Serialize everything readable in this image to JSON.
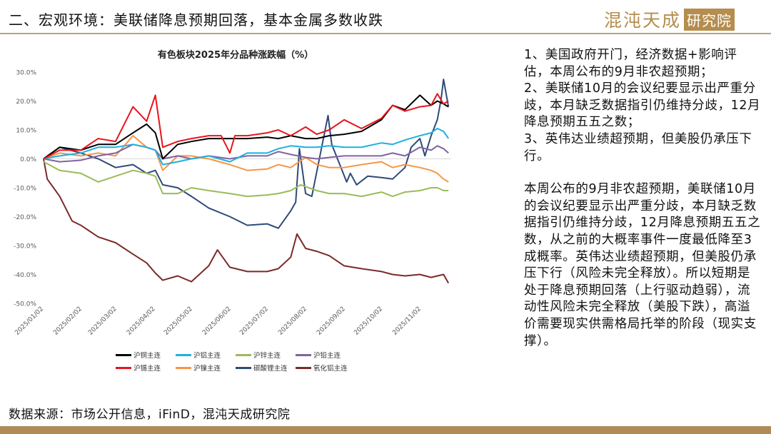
{
  "header": {
    "title": "二、宏观环境：美联储降息预期回落，基本金属多数收跌",
    "logo_text": "混沌天成",
    "logo_box_text": "研究院"
  },
  "notes": {
    "points": [
      "1、美国政府开门，经济数据+影响评估，本周公布的9月非农超预期；",
      "2、美联储10月的会议纪要显示出严重分歧，本月缺乏数据指引仍维持分歧，12月降息预期五五之数；",
      "3、英伟达业绩超预期，但美股仍承压下行。"
    ],
    "paragraph": "本周公布的9月非农超预期，美联储10月的会议纪要显示出严重分歧，本月缺乏数据指引仍维持分歧，12月降息预期五五之数，从之前的大概率事件一度最低降至3成概率。英伟达业绩超预期，但美股仍承压下行（风险未完全释放）。所以短期是处于降息预期回落（上行驱动趋弱），流动性风险未完全释放（美股下跌），高溢价需要现实供需格局托举的阶段（现实支撑）。"
  },
  "footer": {
    "source": "数据来源：市场公开信息，iFinD，混沌天成研究院",
    "bar_color": "#b08b55"
  },
  "chart_data": {
    "type": "line",
    "title": "有色板块2025年分品种涨跌幅（%）",
    "xlabel": "",
    "ylabel": "",
    "ylim": [
      -50,
      30
    ],
    "yticks": [
      "30.0%",
      "20.0%",
      "10.0%",
      "0.0%",
      "-10.0%",
      "-20.0%",
      "-30.0%",
      "-40.0%",
      "-50.0%"
    ],
    "ytick_values": [
      30,
      20,
      10,
      0,
      -10,
      -20,
      -30,
      -40,
      -50
    ],
    "xticks": [
      "2025/01/02",
      "2025/02/02",
      "2025/03/02",
      "2025/04/02",
      "2025/05/02",
      "2025/06/02",
      "2025/07/02",
      "2025/08/02",
      "2025/09/02",
      "2025/10/02",
      "2025/11/02"
    ],
    "grid": false,
    "legend_position": "bottom",
    "series": [
      {
        "name": "沪铜主连",
        "color": "#000000",
        "data": [
          [
            "2025-01-02",
            0
          ],
          [
            "2025-01-15",
            4
          ],
          [
            "2025-02-01",
            3
          ],
          [
            "2025-02-15",
            5
          ],
          [
            "2025-03-01",
            5
          ],
          [
            "2025-03-15",
            9
          ],
          [
            "2025-03-26",
            12
          ],
          [
            "2025-04-02",
            9
          ],
          [
            "2025-04-08",
            0
          ],
          [
            "2025-04-20",
            5
          ],
          [
            "2025-05-01",
            6
          ],
          [
            "2025-05-15",
            7
          ],
          [
            "2025-06-01",
            7
          ],
          [
            "2025-06-15",
            7
          ],
          [
            "2025-07-01",
            7.5
          ],
          [
            "2025-07-10",
            7
          ],
          [
            "2025-07-20",
            8
          ],
          [
            "2025-08-01",
            7
          ],
          [
            "2025-08-10",
            7
          ],
          [
            "2025-08-20",
            8
          ],
          [
            "2025-09-01",
            8.5
          ],
          [
            "2025-09-15",
            9.5
          ],
          [
            "2025-10-01",
            13.5
          ],
          [
            "2025-10-10",
            18.5
          ],
          [
            "2025-10-20",
            17
          ],
          [
            "2025-11-01",
            22
          ],
          [
            "2025-11-10",
            18.5
          ],
          [
            "2025-11-15",
            20
          ],
          [
            "2025-11-20",
            19
          ],
          [
            "2025-11-24",
            18
          ]
        ]
      },
      {
        "name": "沪铝主连",
        "color": "#1fb0e0",
        "data": [
          [
            "2025-01-02",
            0
          ],
          [
            "2025-01-15",
            1
          ],
          [
            "2025-02-01",
            2
          ],
          [
            "2025-02-15",
            4
          ],
          [
            "2025-03-01",
            4
          ],
          [
            "2025-03-15",
            5
          ],
          [
            "2025-03-26",
            4
          ],
          [
            "2025-04-02",
            3
          ],
          [
            "2025-04-08",
            -2
          ],
          [
            "2025-04-20",
            -1
          ],
          [
            "2025-05-01",
            0
          ],
          [
            "2025-05-15",
            1
          ],
          [
            "2025-06-01",
            -1
          ],
          [
            "2025-06-15",
            2
          ],
          [
            "2025-07-01",
            2
          ],
          [
            "2025-07-10",
            3.5
          ],
          [
            "2025-07-20",
            4.5
          ],
          [
            "2025-08-01",
            4
          ],
          [
            "2025-08-10",
            4
          ],
          [
            "2025-08-20",
            4.5
          ],
          [
            "2025-09-01",
            4
          ],
          [
            "2025-09-15",
            4
          ],
          [
            "2025-10-01",
            5.5
          ],
          [
            "2025-10-10",
            5
          ],
          [
            "2025-10-20",
            6.5
          ],
          [
            "2025-11-01",
            8
          ],
          [
            "2025-11-10",
            9
          ],
          [
            "2025-11-15",
            10.5
          ],
          [
            "2025-11-20",
            9.5
          ],
          [
            "2025-11-24",
            7
          ]
        ]
      },
      {
        "name": "沪锌主连",
        "color": "#9bbb59",
        "data": [
          [
            "2025-01-02",
            -1
          ],
          [
            "2025-01-15",
            -4
          ],
          [
            "2025-02-01",
            -5
          ],
          [
            "2025-02-15",
            -8
          ],
          [
            "2025-03-01",
            -6
          ],
          [
            "2025-03-15",
            -4
          ],
          [
            "2025-03-26",
            -5
          ],
          [
            "2025-04-02",
            -6
          ],
          [
            "2025-04-08",
            -12
          ],
          [
            "2025-04-20",
            -12
          ],
          [
            "2025-05-01",
            -10
          ],
          [
            "2025-05-15",
            -11
          ],
          [
            "2025-06-01",
            -12
          ],
          [
            "2025-06-15",
            -13
          ],
          [
            "2025-07-01",
            -12.5
          ],
          [
            "2025-07-10",
            -12
          ],
          [
            "2025-07-20",
            -11
          ],
          [
            "2025-07-28",
            -9
          ],
          [
            "2025-08-10",
            -11
          ],
          [
            "2025-08-20",
            -12
          ],
          [
            "2025-09-01",
            -12
          ],
          [
            "2025-09-15",
            -13
          ],
          [
            "2025-10-01",
            -11.5
          ],
          [
            "2025-10-10",
            -13
          ],
          [
            "2025-10-20",
            -11.5
          ],
          [
            "2025-11-01",
            -11
          ],
          [
            "2025-11-10",
            -10
          ],
          [
            "2025-11-15",
            -10
          ],
          [
            "2025-11-20",
            -11
          ],
          [
            "2025-11-24",
            -11
          ]
        ]
      },
      {
        "name": "沪铅主连",
        "color": "#8064a2",
        "data": [
          [
            "2025-01-02",
            0
          ],
          [
            "2025-01-15",
            -1
          ],
          [
            "2025-02-01",
            -0.5
          ],
          [
            "2025-02-15",
            1
          ],
          [
            "2025-03-01",
            2
          ],
          [
            "2025-03-15",
            5
          ],
          [
            "2025-03-26",
            4
          ],
          [
            "2025-04-02",
            3
          ],
          [
            "2025-04-08",
            0
          ],
          [
            "2025-04-20",
            1
          ],
          [
            "2025-05-01",
            0
          ],
          [
            "2025-05-15",
            1
          ],
          [
            "2025-06-01",
            0
          ],
          [
            "2025-06-15",
            1
          ],
          [
            "2025-07-01",
            1
          ],
          [
            "2025-07-10",
            2.5
          ],
          [
            "2025-07-20",
            1.5
          ],
          [
            "2025-08-01",
            0.5
          ],
          [
            "2025-08-10",
            0
          ],
          [
            "2025-08-20",
            0.5
          ],
          [
            "2025-09-01",
            1
          ],
          [
            "2025-09-15",
            1
          ],
          [
            "2025-10-01",
            1
          ],
          [
            "2025-10-10",
            2
          ],
          [
            "2025-10-20",
            1
          ],
          [
            "2025-11-01",
            4
          ],
          [
            "2025-11-10",
            3
          ],
          [
            "2025-11-15",
            4.5
          ],
          [
            "2025-11-20",
            3.5
          ],
          [
            "2025-11-24",
            2
          ]
        ]
      },
      {
        "name": "沪锡主连",
        "color": "#e8141c",
        "data": [
          [
            "2025-01-02",
            0
          ],
          [
            "2025-01-15",
            3
          ],
          [
            "2025-02-01",
            3
          ],
          [
            "2025-02-15",
            7
          ],
          [
            "2025-03-01",
            6
          ],
          [
            "2025-03-15",
            18
          ],
          [
            "2025-03-26",
            13
          ],
          [
            "2025-04-02",
            22
          ],
          [
            "2025-04-08",
            4
          ],
          [
            "2025-04-20",
            6
          ],
          [
            "2025-05-01",
            7
          ],
          [
            "2025-05-15",
            8
          ],
          [
            "2025-05-25",
            8
          ],
          [
            "2025-06-01",
            2
          ],
          [
            "2025-06-05",
            8
          ],
          [
            "2025-06-15",
            8
          ],
          [
            "2025-07-01",
            9
          ],
          [
            "2025-07-10",
            10
          ],
          [
            "2025-07-20",
            8
          ],
          [
            "2025-08-01",
            11
          ],
          [
            "2025-08-10",
            8.5
          ],
          [
            "2025-08-20",
            10
          ],
          [
            "2025-09-01",
            13.5
          ],
          [
            "2025-09-15",
            10.5
          ],
          [
            "2025-10-01",
            14
          ],
          [
            "2025-10-10",
            18.5
          ],
          [
            "2025-10-20",
            16.5
          ],
          [
            "2025-11-01",
            18
          ],
          [
            "2025-11-10",
            18.5
          ],
          [
            "2025-11-15",
            22.5
          ],
          [
            "2025-11-20",
            19
          ],
          [
            "2025-11-24",
            20
          ]
        ]
      },
      {
        "name": "沪镍主连",
        "color": "#f79646",
        "data": [
          [
            "2025-01-02",
            0
          ],
          [
            "2025-01-15",
            2
          ],
          [
            "2025-02-01",
            1
          ],
          [
            "2025-02-15",
            2
          ],
          [
            "2025-03-01",
            1
          ],
          [
            "2025-03-15",
            8
          ],
          [
            "2025-03-26",
            4
          ],
          [
            "2025-04-02",
            3
          ],
          [
            "2025-04-08",
            -4
          ],
          [
            "2025-04-20",
            1
          ],
          [
            "2025-05-01",
            1
          ],
          [
            "2025-05-15",
            0
          ],
          [
            "2025-06-01",
            -2
          ],
          [
            "2025-06-15",
            -4
          ],
          [
            "2025-07-01",
            -3.5
          ],
          [
            "2025-07-10",
            -2
          ],
          [
            "2025-07-20",
            -3
          ],
          [
            "2025-08-01",
            0.5
          ],
          [
            "2025-08-10",
            -2
          ],
          [
            "2025-08-20",
            -3
          ],
          [
            "2025-09-01",
            -3
          ],
          [
            "2025-09-15",
            -2
          ],
          [
            "2025-10-01",
            -1
          ],
          [
            "2025-10-10",
            -3
          ],
          [
            "2025-10-20",
            -2
          ],
          [
            "2025-11-01",
            -3
          ],
          [
            "2025-11-10",
            -4
          ],
          [
            "2025-11-15",
            -5
          ],
          [
            "2025-11-20",
            -7
          ],
          [
            "2025-11-24",
            -8
          ]
        ]
      },
      {
        "name": "碳酸锂主连",
        "color": "#2f4a78",
        "data": [
          [
            "2025-01-02",
            0
          ],
          [
            "2025-01-15",
            4
          ],
          [
            "2025-02-01",
            2
          ],
          [
            "2025-02-15",
            0
          ],
          [
            "2025-03-01",
            -3
          ],
          [
            "2025-03-15",
            -2
          ],
          [
            "2025-03-26",
            -5
          ],
          [
            "2025-04-02",
            -4
          ],
          [
            "2025-04-08",
            -9
          ],
          [
            "2025-04-20",
            -10
          ],
          [
            "2025-05-01",
            -13
          ],
          [
            "2025-05-15",
            -17
          ],
          [
            "2025-06-01",
            -20
          ],
          [
            "2025-06-15",
            -23
          ],
          [
            "2025-07-01",
            -22.5
          ],
          [
            "2025-07-10",
            -24
          ],
          [
            "2025-07-20",
            -18
          ],
          [
            "2025-07-24",
            -15
          ],
          [
            "2025-07-27",
            3.5
          ],
          [
            "2025-08-01",
            -12
          ],
          [
            "2025-08-06",
            -13
          ],
          [
            "2025-08-19",
            15
          ],
          [
            "2025-08-22",
            5
          ],
          [
            "2025-09-03",
            -8
          ],
          [
            "2025-09-06",
            -5
          ],
          [
            "2025-09-11",
            -9
          ],
          [
            "2025-09-20",
            -6
          ],
          [
            "2025-10-01",
            -6.5
          ],
          [
            "2025-10-10",
            -7
          ],
          [
            "2025-10-20",
            -3
          ],
          [
            "2025-10-25",
            4
          ],
          [
            "2025-11-01",
            7
          ],
          [
            "2025-11-05",
            1
          ],
          [
            "2025-11-10",
            8
          ],
          [
            "2025-11-15",
            13.5
          ],
          [
            "2025-11-18",
            20.5
          ],
          [
            "2025-11-20",
            27.5
          ],
          [
            "2025-11-24",
            18
          ]
        ]
      },
      {
        "name": "氧化铝主连",
        "color": "#7b2a2a",
        "data": [
          [
            "2025-01-02",
            0
          ],
          [
            "2025-01-05",
            -7
          ],
          [
            "2025-01-15",
            -13
          ],
          [
            "2025-01-25",
            -21.5
          ],
          [
            "2025-02-01",
            -23
          ],
          [
            "2025-02-15",
            -27
          ],
          [
            "2025-03-01",
            -29
          ],
          [
            "2025-03-15",
            -33
          ],
          [
            "2025-03-26",
            -36
          ],
          [
            "2025-04-02",
            -39.5
          ],
          [
            "2025-04-08",
            -42
          ],
          [
            "2025-04-20",
            -40.5
          ],
          [
            "2025-05-01",
            -42.5
          ],
          [
            "2025-05-15",
            -37
          ],
          [
            "2025-05-22",
            -31.5
          ],
          [
            "2025-06-01",
            -37.5
          ],
          [
            "2025-06-15",
            -39
          ],
          [
            "2025-07-01",
            -39
          ],
          [
            "2025-07-10",
            -38
          ],
          [
            "2025-07-20",
            -34
          ],
          [
            "2025-07-25",
            -26
          ],
          [
            "2025-08-01",
            -31
          ],
          [
            "2025-08-10",
            -32
          ],
          [
            "2025-08-20",
            -33.5
          ],
          [
            "2025-09-01",
            -37
          ],
          [
            "2025-09-15",
            -38
          ],
          [
            "2025-10-01",
            -39
          ],
          [
            "2025-10-10",
            -40
          ],
          [
            "2025-10-20",
            -40.5
          ],
          [
            "2025-11-01",
            -40
          ],
          [
            "2025-11-10",
            -41
          ],
          [
            "2025-11-20",
            -40
          ],
          [
            "2025-11-24",
            -43
          ]
        ]
      }
    ]
  }
}
